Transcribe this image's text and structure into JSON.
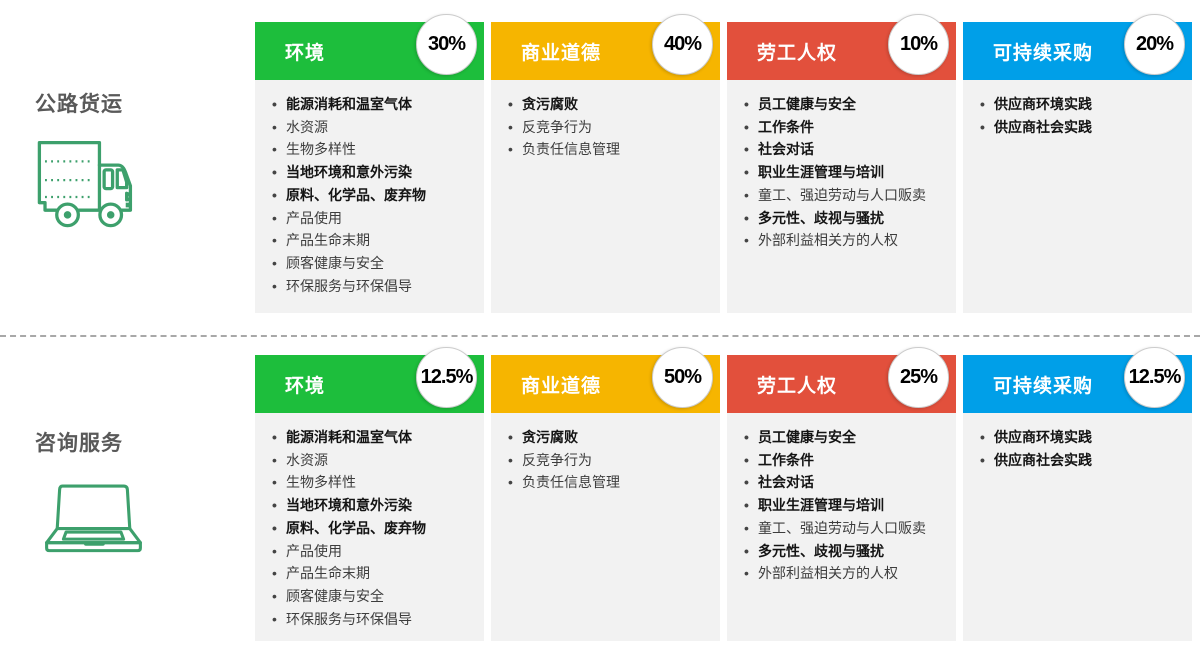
{
  "palette": {
    "environment": "#1dbe3c",
    "business_ethics": "#f6b500",
    "labor_rights": "#e2503c",
    "sustainable_procurement": "#009fe8",
    "icon_green": "#3da06c",
    "card_body_bg": "#f2f2f2"
  },
  "rows": [
    {
      "label": "公路货运",
      "icon": "truck-icon",
      "cards": [
        {
          "title": "环境",
          "percent": "30%",
          "items": [
            {
              "text": "能源消耗和温室气体",
              "bold": true
            },
            {
              "text": "水资源",
              "bold": false
            },
            {
              "text": "生物多样性",
              "bold": false
            },
            {
              "text": "当地环境和意外污染",
              "bold": true
            },
            {
              "text": "原料、化学品、废弃物",
              "bold": true
            },
            {
              "text": "产品使用",
              "bold": false
            },
            {
              "text": "产品生命末期",
              "bold": false
            },
            {
              "text": "顾客健康与安全",
              "bold": false
            },
            {
              "text": "环保服务与环保倡导",
              "bold": false
            }
          ]
        },
        {
          "title": "商业道德",
          "percent": "40%",
          "items": [
            {
              "text": "贪污腐败",
              "bold": true
            },
            {
              "text": "反竞争行为",
              "bold": false
            },
            {
              "text": "负责任信息管理",
              "bold": false
            }
          ]
        },
        {
          "title": "劳工人权",
          "percent": "10%",
          "items": [
            {
              "text": "员工健康与安全",
              "bold": true
            },
            {
              "text": "工作条件",
              "bold": true
            },
            {
              "text": "社会对话",
              "bold": true
            },
            {
              "text": "职业生涯管理与培训",
              "bold": true
            },
            {
              "text": "童工、强迫劳动与人口贩卖",
              "bold": false
            },
            {
              "text": "多元性、歧视与骚扰",
              "bold": true
            },
            {
              "text": "外部利益相关方的人权",
              "bold": false
            }
          ]
        },
        {
          "title": "可持续采购",
          "percent": "20%",
          "items": [
            {
              "text": "供应商环境实践",
              "bold": true
            },
            {
              "text": "供应商社会实践",
              "bold": true
            }
          ]
        }
      ]
    },
    {
      "label": "咨询服务",
      "icon": "laptop-icon",
      "cards": [
        {
          "title": "环境",
          "percent": "12.5%",
          "items": [
            {
              "text": "能源消耗和温室气体",
              "bold": true
            },
            {
              "text": "水资源",
              "bold": false
            },
            {
              "text": "生物多样性",
              "bold": false
            },
            {
              "text": "当地环境和意外污染",
              "bold": true
            },
            {
              "text": "原料、化学品、废弃物",
              "bold": true
            },
            {
              "text": "产品使用",
              "bold": false
            },
            {
              "text": "产品生命末期",
              "bold": false
            },
            {
              "text": "顾客健康与安全",
              "bold": false
            },
            {
              "text": "环保服务与环保倡导",
              "bold": false
            }
          ]
        },
        {
          "title": "商业道德",
          "percent": "50%",
          "items": [
            {
              "text": "贪污腐败",
              "bold": true
            },
            {
              "text": "反竞争行为",
              "bold": false
            },
            {
              "text": "负责任信息管理",
              "bold": false
            }
          ]
        },
        {
          "title": "劳工人权",
          "percent": "25%",
          "items": [
            {
              "text": "员工健康与安全",
              "bold": true
            },
            {
              "text": "工作条件",
              "bold": true
            },
            {
              "text": "社会对话",
              "bold": true
            },
            {
              "text": "职业生涯管理与培训",
              "bold": true
            },
            {
              "text": "童工、强迫劳动与人口贩卖",
              "bold": false
            },
            {
              "text": "多元性、歧视与骚扰",
              "bold": true
            },
            {
              "text": "外部利益相关方的人权",
              "bold": false
            }
          ]
        },
        {
          "title": "可持续采购",
          "percent": "12.5%",
          "items": [
            {
              "text": "供应商环境实践",
              "bold": true
            },
            {
              "text": "供应商社会实践",
              "bold": true
            }
          ]
        }
      ]
    }
  ]
}
